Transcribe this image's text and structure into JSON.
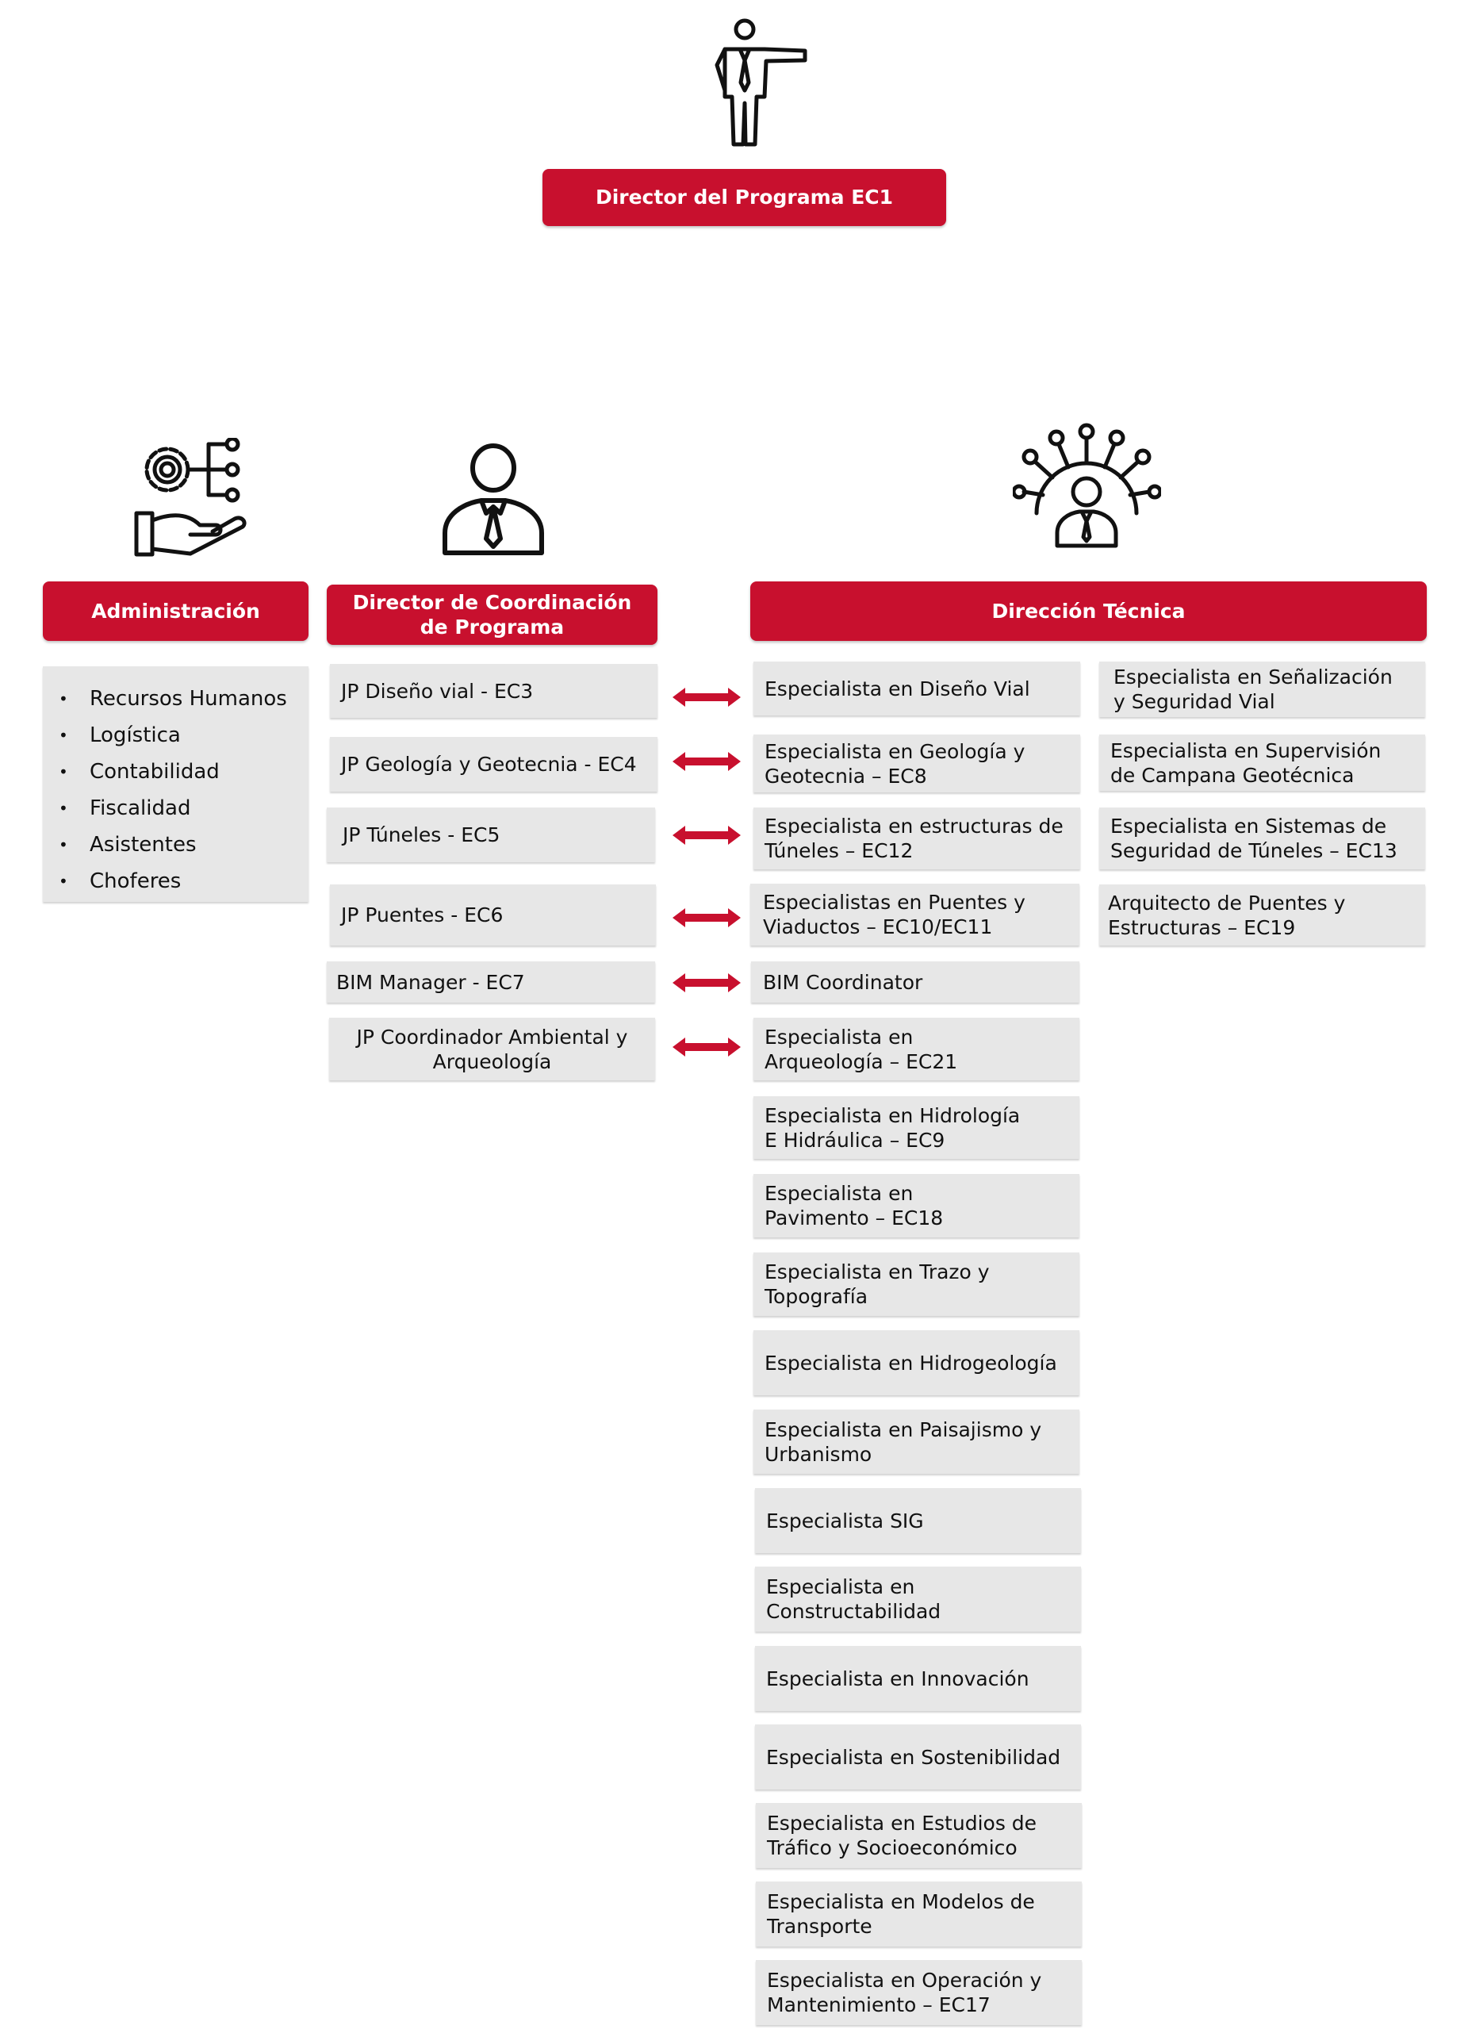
{
  "colors": {
    "header_red": "#c8102e",
    "box_gray": "#e7e7e7",
    "text": "#111111"
  },
  "top": {
    "title": "Director del Programa EC1",
    "icon": "director-pointing-icon"
  },
  "administracion": {
    "title": "Administración",
    "icon": "gear-hand-network-icon",
    "items": [
      "Recursos Humanos",
      "Logística",
      "Contabilidad",
      "Fiscalidad",
      "Asistentes",
      "Choferes"
    ]
  },
  "coordinacion": {
    "title": "Director de Coordinación\nde Programa",
    "icon": "person-tie-icon",
    "items": [
      "JP Diseño vial - EC3",
      "JP Geología y Geotecnia - EC4",
      "JP Túneles - EC5",
      "JP Puentes - EC6",
      "BIM Manager - EC7",
      "JP Coordinador Ambiental y\nArqueología"
    ]
  },
  "tecnica": {
    "title": "Dirección Técnica",
    "icon": "person-network-icon",
    "col1": [
      "Especialista en Diseño Vial",
      "Especialista en Geología y\nGeotecnia – EC8",
      "Especialista en estructuras de\nTúneles – EC12",
      "Especialistas en Puentes y\nViaductos – EC10/EC11",
      "BIM Coordinator",
      "Especialista en\nArqueología – EC21",
      "Especialista en Hidrología\nE Hidráulica – EC9",
      "Especialista en\nPavimento – EC18",
      "Especialista en Trazo y\nTopografía",
      "Especialista en Hidrogeología",
      "Especialista en Paisajismo y\nUrbanismo",
      "Especialista SIG",
      "Especialista en\nConstructabilidad",
      "Especialista en Innovación",
      "Especialista en Sostenibilidad",
      "Especialista en Estudios de\nTráfico y Socioeconómico",
      "Especialista en Modelos de\nTransporte",
      "Especialista en Operación y\nMantenimiento – EC17"
    ],
    "col2": [
      "Especialista en Señalización\n y Seguridad Vial",
      "Especialista en Supervisión\nde Campana Geotécnica",
      "Especialista en Sistemas de\nSeguridad de Túneles – EC13",
      "Arquitecto de Puentes y\nEstructuras – EC19"
    ]
  }
}
